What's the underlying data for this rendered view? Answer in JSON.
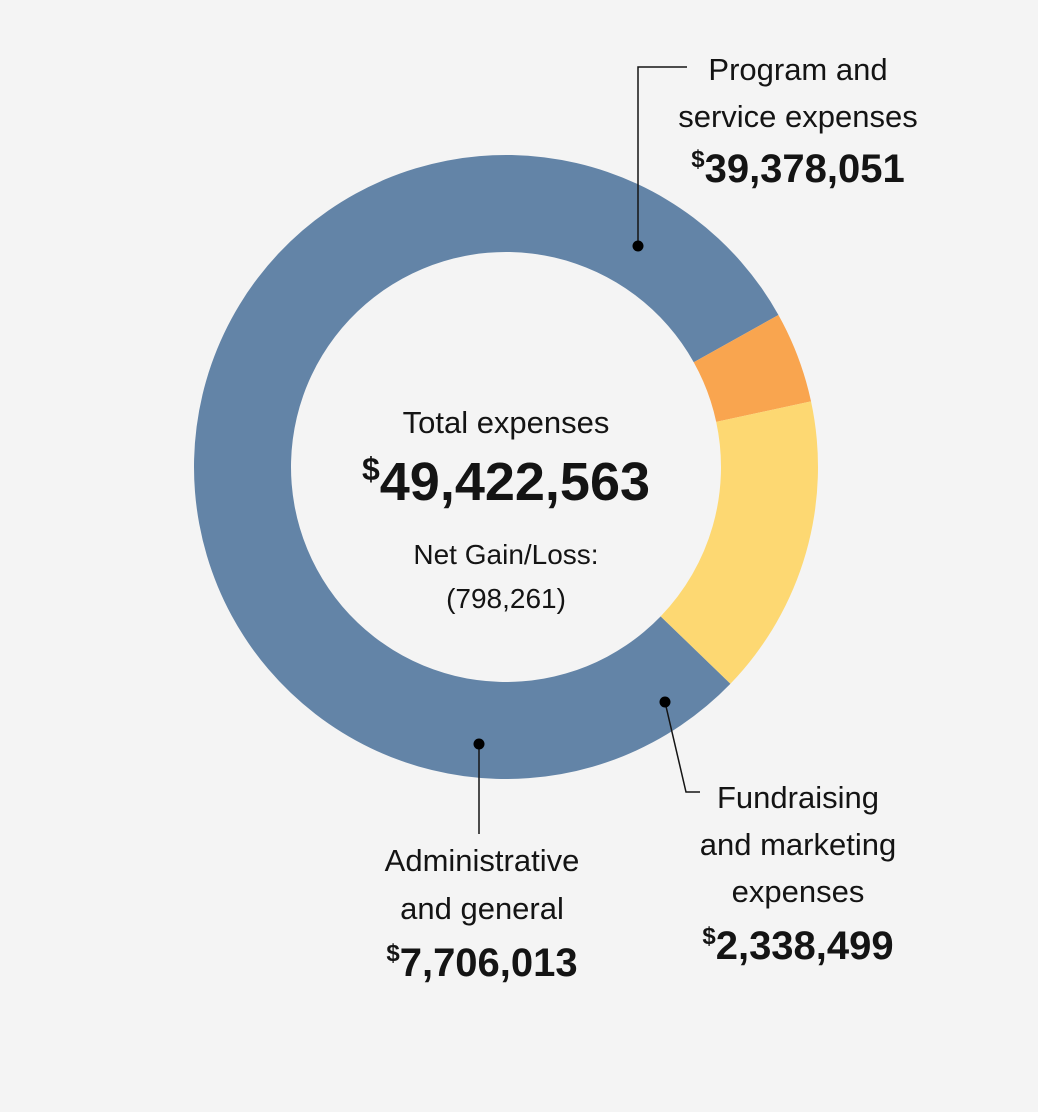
{
  "chart_data": {
    "type": "pie",
    "variant": "donut",
    "title": "Total expenses",
    "total_display": "49,422,563",
    "currency_symbol": "$",
    "net_label": "Net Gain/Loss:",
    "net_value": "(798,261)",
    "slices": [
      {
        "key": "program",
        "name_lines": [
          "Program and",
          "service expenses"
        ],
        "value": 39378051,
        "value_display": "39,378,051",
        "color": "#6384a7"
      },
      {
        "key": "fundraising",
        "name_lines": [
          "Fundraising",
          "and marketing",
          "expenses"
        ],
        "value": 2338499,
        "value_display": "2,338,499",
        "color": "#f9a54f"
      },
      {
        "key": "admin",
        "name_lines": [
          "Administrative",
          "and general"
        ],
        "value": 7706013,
        "value_display": "7,706,013",
        "color": "#fdd872"
      }
    ]
  }
}
